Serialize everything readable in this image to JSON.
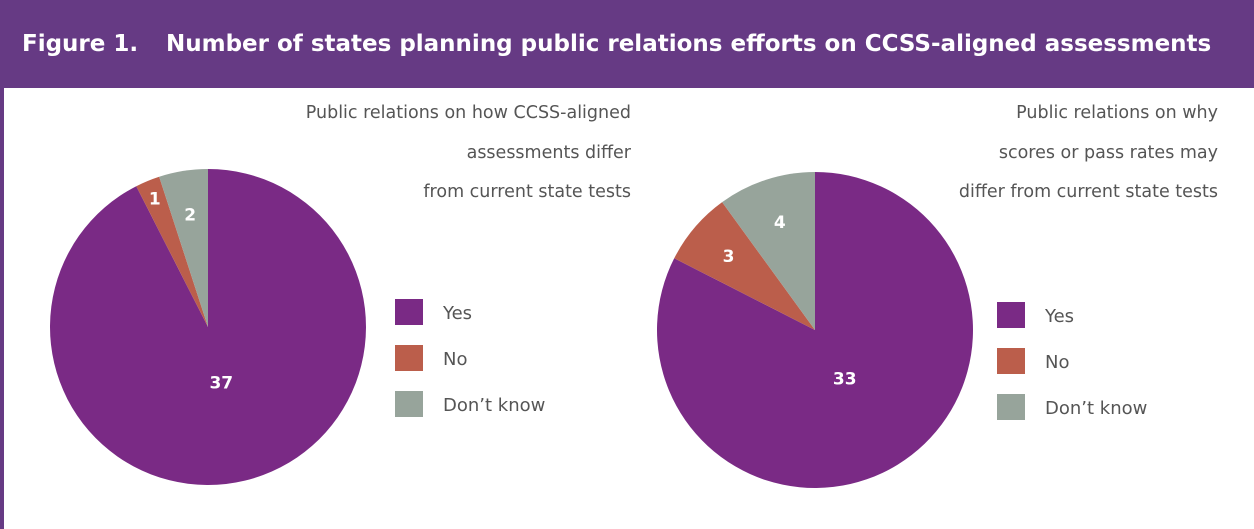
{
  "figure": {
    "label": "Figure 1.",
    "title": "Number of states planning public relations efforts on CCSS-aligned assessments"
  },
  "colors": {
    "header": "#663a84",
    "yes": "#7a2a85",
    "no": "#bb5e4b",
    "dont_know": "#97a49b"
  },
  "chart_data": [
    {
      "type": "pie",
      "title_lines": [
        "Public relations on how CCSS-aligned",
        "assessments differ",
        "from current state tests"
      ],
      "categories": [
        "Yes",
        "No",
        "Don’t know"
      ],
      "values": [
        37,
        1,
        2
      ],
      "data_labels": [
        "37",
        "1",
        "2"
      ],
      "legend": [
        "Yes",
        "No",
        "Don’t know"
      ],
      "legend_position": "right"
    },
    {
      "type": "pie",
      "title_lines": [
        "Public relations on why",
        "scores or pass rates may",
        "differ from current state tests"
      ],
      "categories": [
        "Yes",
        "No",
        "Don’t know"
      ],
      "values": [
        33,
        3,
        4
      ],
      "data_labels": [
        "33",
        "3",
        "4"
      ],
      "legend": [
        "Yes",
        "No",
        "Don’t know"
      ],
      "legend_position": "right"
    }
  ]
}
